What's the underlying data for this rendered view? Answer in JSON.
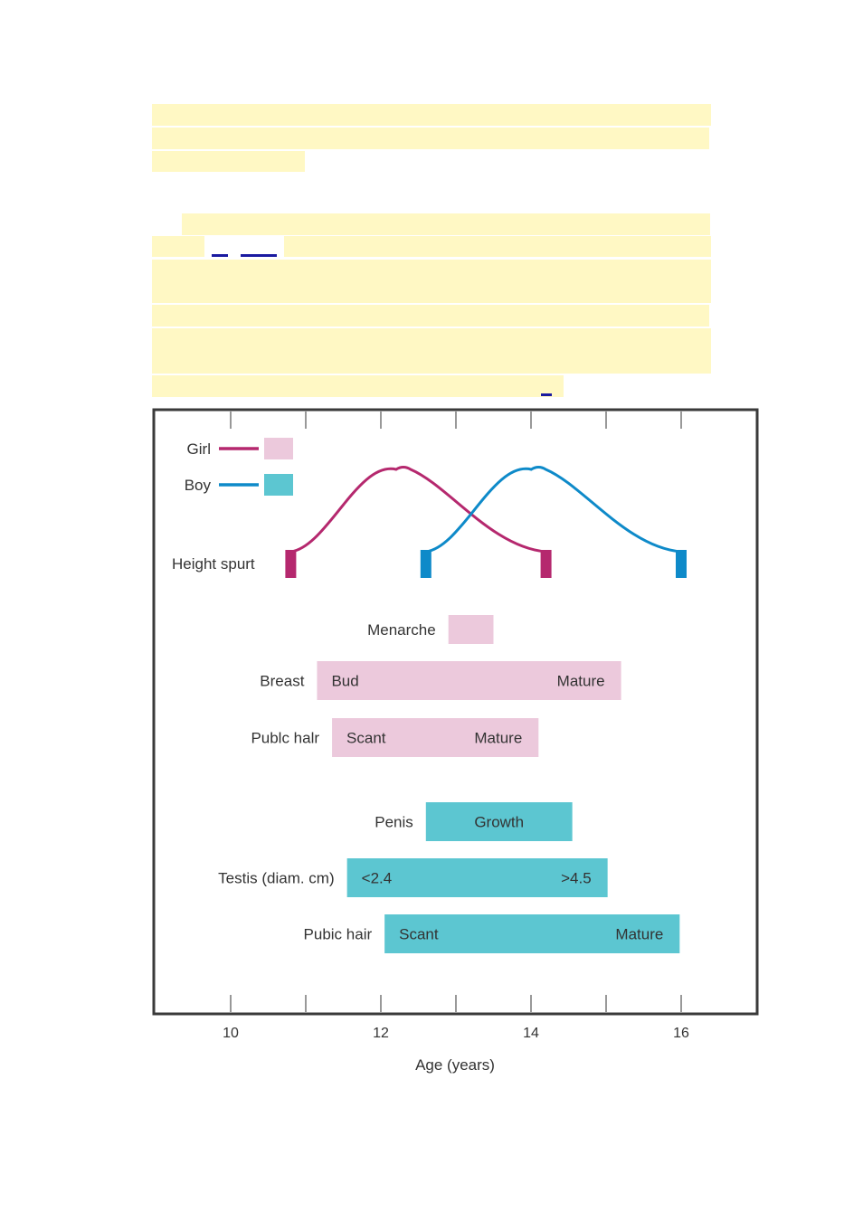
{
  "text_block": {
    "highlight_color": "#fff8c4",
    "link_color": "#1a1aa0"
  },
  "chart_data": {
    "type": "range-bar",
    "x_axis": {
      "label": "Age (years)",
      "ticks": [
        10,
        11,
        12,
        13,
        14,
        15,
        16
      ],
      "tick_labels": [
        "10",
        "12",
        "14",
        "16"
      ],
      "labeled_ticks": [
        10,
        12,
        14,
        16
      ],
      "range": [
        9,
        17
      ]
    },
    "colors": {
      "girl_line": "#b5286e",
      "girl_fill": "#ecc9dc",
      "boy_line": "#0e8ac9",
      "boy_fill": "#5cc6d1"
    },
    "legend": [
      {
        "label": "Girl",
        "group": "girl"
      },
      {
        "label": "Boy",
        "group": "boy"
      }
    ],
    "height_spurt": {
      "label": "Height spurt",
      "girl": {
        "start": 10.8,
        "peak": 12.3,
        "end": 14.2
      },
      "boy": {
        "start": 12.6,
        "peak": 14.1,
        "end": 16.0
      }
    },
    "bars": [
      {
        "row": "menarche",
        "group": "girl",
        "label": "Menarche",
        "start": 12.9,
        "end": 13.5,
        "left_text": "",
        "right_text": ""
      },
      {
        "row": "breast",
        "group": "girl",
        "label": "Breast",
        "start": 11.15,
        "end": 15.2,
        "left_text": "Bud",
        "right_text": "Mature"
      },
      {
        "row": "girl-pubic-hair",
        "group": "girl",
        "label": "Publc halr",
        "start": 11.35,
        "end": 14.1,
        "left_text": "Scant",
        "right_text": "Mature"
      },
      {
        "row": "penis",
        "group": "boy",
        "label": "Penis",
        "start": 12.6,
        "end": 14.55,
        "left_text": "",
        "right_text": "",
        "center_text": "Growth"
      },
      {
        "row": "testis",
        "group": "boy",
        "label": "Testis (diam. cm)",
        "start": 11.55,
        "end": 15.02,
        "left_text": "<2.4",
        "right_text": ">4.5"
      },
      {
        "row": "boy-pubic-hair",
        "group": "boy",
        "label": "Pubic hair",
        "start": 12.05,
        "end": 15.98,
        "left_text": "Scant",
        "right_text": "Mature"
      }
    ]
  }
}
